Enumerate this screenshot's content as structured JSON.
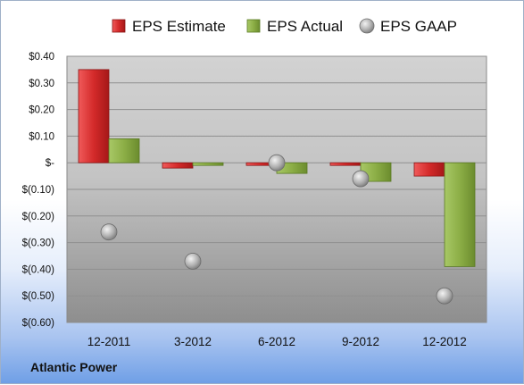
{
  "chart_data": {
    "type": "bar",
    "categories": [
      "12-2011",
      "3-2012",
      "6-2012",
      "9-2012",
      "12-2012"
    ],
    "series": [
      {
        "name": "EPS Estimate",
        "values": [
          0.35,
          -0.02,
          -0.01,
          -0.01,
          -0.05
        ],
        "color": "#d42a2a",
        "kind": "bar"
      },
      {
        "name": "EPS Actual",
        "values": [
          0.09,
          -0.01,
          -0.04,
          -0.07,
          -0.39
        ],
        "color": "#8cae46",
        "kind": "bar"
      },
      {
        "name": "EPS GAAP",
        "values": [
          -0.26,
          -0.37,
          0.0,
          -0.06,
          -0.5
        ],
        "color": "#b8b8b8",
        "kind": "marker"
      }
    ],
    "ylim": [
      -0.6,
      0.4
    ],
    "yticks": [
      0.4,
      0.3,
      0.2,
      0.1,
      0,
      -0.1,
      -0.2,
      -0.3,
      -0.4,
      -0.5,
      -0.6
    ],
    "ytick_labels": [
      "$0.40",
      "$0.30",
      "$0.20",
      "$0.10",
      "$-",
      "$(0.10)",
      "$(0.20)",
      "$(0.30)",
      "$(0.40)",
      "$(0.50)",
      "$(0.60)"
    ],
    "grid": true,
    "legend": "top"
  },
  "company": "Atlantic Power"
}
